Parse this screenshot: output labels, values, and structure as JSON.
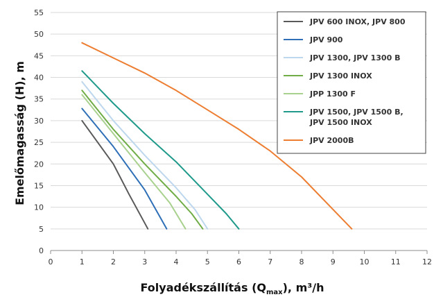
{
  "chart_data": {
    "type": "line",
    "title": "",
    "xlabel": {
      "prefix": "Folyadékszállítás (Q",
      "subscript": "max",
      "suffix": "), m³/h"
    },
    "ylabel": "Emelőmagasság (H), m",
    "xlim": [
      0,
      12
    ],
    "ylim": [
      0,
      55
    ],
    "xticks": [
      0,
      1,
      2,
      3,
      4,
      5,
      6,
      7,
      8,
      9,
      10,
      11,
      12
    ],
    "yticks": [
      0,
      5,
      10,
      15,
      20,
      25,
      30,
      35,
      40,
      45,
      50,
      55
    ],
    "grid": true,
    "legend_position": "top-right",
    "series": [
      {
        "name": "JPV 600 INOX, JPV 800",
        "color": "#595959",
        "legend_lines": [
          "JPV 600 INOX, JPV 800"
        ],
        "x": [
          1,
          2,
          2.5,
          3.1
        ],
        "y": [
          30,
          20,
          13,
          5
        ]
      },
      {
        "name": "JPV 900",
        "color": "#2e6fb7",
        "legend_lines": [
          "JPV 900"
        ],
        "x": [
          1,
          2,
          3,
          3.7
        ],
        "y": [
          32.8,
          24,
          14,
          5
        ]
      },
      {
        "name": "JPV 1300, JPV 1300 B",
        "color": "#bdd7ee",
        "legend_lines": [
          "JPV 1300, JPV 1300 B"
        ],
        "x": [
          1,
          2,
          3,
          4,
          4.6,
          5
        ],
        "y": [
          39,
          30,
          22,
          14.5,
          9.5,
          5
        ]
      },
      {
        "name": "JPV 1300 INOX",
        "color": "#70ad47",
        "legend_lines": [
          "JPV 1300 INOX"
        ],
        "x": [
          1,
          2,
          3,
          4,
          4.5,
          4.85
        ],
        "y": [
          37,
          28,
          20,
          12.5,
          8.5,
          5
        ]
      },
      {
        "name": "JPP 1300 F",
        "color": "#a9d18e",
        "legend_lines": [
          "JPP 1300 F"
        ],
        "x": [
          1,
          2,
          3,
          3.8,
          4.3
        ],
        "y": [
          36,
          27,
          18,
          11,
          5
        ]
      },
      {
        "name": "JPV 1500, JPV 1500 B, JPV 1500 INOX",
        "color": "#1f9a8a",
        "legend_lines": [
          "JPV 1500, JPV 1500 B,",
          "JPV 1500 INOX"
        ],
        "x": [
          1,
          2,
          3,
          4,
          5,
          5.6,
          6
        ],
        "y": [
          41.5,
          34,
          27,
          20.5,
          13,
          8.5,
          5
        ]
      },
      {
        "name": "JPV 2000B",
        "color": "#ed7d31",
        "legend_lines": [
          "JPV 2000B"
        ],
        "x": [
          1,
          2,
          3,
          4,
          5,
          6,
          7,
          8,
          9,
          9.6
        ],
        "y": [
          48,
          44.5,
          41,
          37,
          32.5,
          28,
          23,
          17,
          9.5,
          5
        ]
      }
    ]
  }
}
